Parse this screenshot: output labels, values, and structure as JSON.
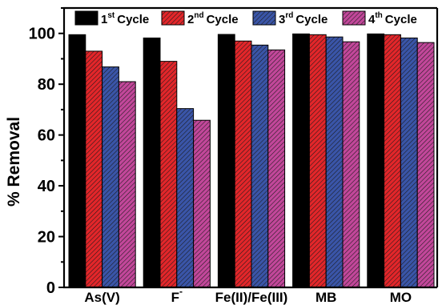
{
  "chart_data": {
    "type": "bar",
    "title": "",
    "xlabel": "",
    "ylabel": "% Removal",
    "ylim": [
      0,
      110
    ],
    "yticks": [
      0,
      20,
      40,
      60,
      80,
      100
    ],
    "y_minor_step": 10,
    "grid": false,
    "legend_position": "top",
    "categories": [
      {
        "main": "As(V)",
        "sup": ""
      },
      {
        "main": "F",
        "sup": "-"
      },
      {
        "main": "Fe(II)/Fe(III)",
        "sup": ""
      },
      {
        "main": "MB",
        "sup": ""
      },
      {
        "main": "MO",
        "sup": ""
      }
    ],
    "series": [
      {
        "name": "1st Cycle",
        "label_num": "1",
        "label_sup": "st",
        "label_rest": "Cycle",
        "color": "#000000",
        "pattern": "solid",
        "values": [
          99.5,
          98.2,
          99.6,
          99.8,
          99.8
        ]
      },
      {
        "name": "2nd Cycle",
        "label_num": "2",
        "label_sup": "nd",
        "label_rest": "Cycle",
        "color": "#e3262a",
        "pattern": "hatch",
        "values": [
          93.0,
          89.0,
          97.0,
          99.5,
          99.5
        ]
      },
      {
        "name": "3rd Cycle",
        "label_num": "3",
        "label_sup": "rd",
        "label_rest": "Cycle",
        "color": "#3a55a8",
        "pattern": "hatch",
        "values": [
          86.8,
          70.4,
          95.4,
          98.6,
          98.2
        ]
      },
      {
        "name": "4th Cycle",
        "label_num": "4",
        "label_sup": "th",
        "label_rest": "Cycle",
        "color": "#c2479a",
        "pattern": "hatch",
        "values": [
          81.0,
          65.8,
          93.5,
          96.7,
          96.4
        ]
      }
    ]
  }
}
